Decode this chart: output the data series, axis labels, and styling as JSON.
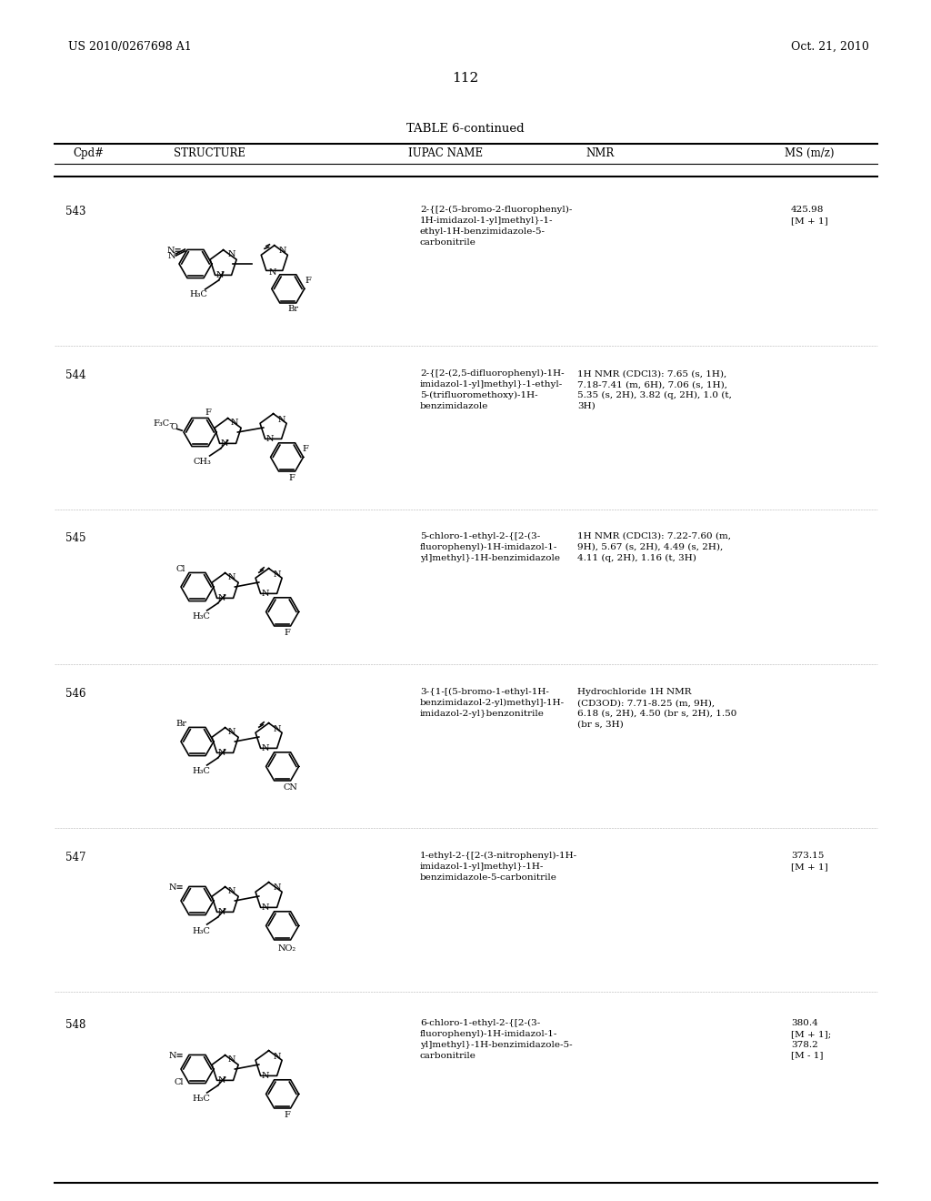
{
  "page_header_left": "US 2010/0267698 A1",
  "page_header_right": "Oct. 21, 2010",
  "page_number": "112",
  "table_title": "TABLE 6-continued",
  "columns": [
    "Cpd#",
    "STRUCTURE",
    "IUPAC NAME",
    "NMR",
    "MS (m/z)"
  ],
  "background_color": "#ffffff",
  "text_color": "#000000",
  "compounds": [
    {
      "id": "543",
      "iupac": "2-{[2-(5-bromo-2-fluorophenyl)-\n1H-imidazol-1-yl]methyl}-1-\nethyl-1H-benzimidazole-5-\ncarbonitrile",
      "nmr": "",
      "ms": "425.98\n[M + 1]"
    },
    {
      "id": "544",
      "iupac": "2-{[2-(2,5-difluorophenyl)-1H-\nimidazol-1-yl]methyl}-1-ethyl-\n5-(trifluoromethoxy)-1H-\nbenzimidazole",
      "nmr": "1H NMR (CDCl3): 7.65 (s, 1H),\n7.18-7.41 (m, 6H), 7.06 (s, 1H),\n5.35 (s, 2H), 3.82 (q, 2H), 1.0 (t,\n3H)",
      "ms": ""
    },
    {
      "id": "545",
      "iupac": "5-chloro-1-ethyl-2-{[2-(3-\nfluorophenyl)-1H-imidazol-1-\nyl]methyl}-1H-benzimidazole",
      "nmr": "1H NMR (CDCl3): 7.22-7.60 (m,\n9H), 5.67 (s, 2H), 4.49 (s, 2H),\n4.11 (q, 2H), 1.16 (t, 3H)",
      "ms": ""
    },
    {
      "id": "546",
      "iupac": "3-{1-[(5-bromo-1-ethyl-1H-\nbenzimidazol-2-yl)methyl]-1H-\nimidazol-2-yl}benzonitrile",
      "nmr": "Hydrochloride 1H NMR\n(CD3OD): 7.71-8.25 (m, 9H),\n6.18 (s, 2H), 4.50 (br s, 2H), 1.50\n(br s, 3H)",
      "ms": ""
    },
    {
      "id": "547",
      "iupac": "1-ethyl-2-{[2-(3-nitrophenyl)-1H-\nimidazol-1-yl]methyl}-1H-\nbenzimidazole-5-carbonitrile",
      "nmr": "",
      "ms": "373.15\n[M + 1]"
    },
    {
      "id": "548",
      "iupac": "6-chloro-1-ethyl-2-{[2-(3-\nfluorophenyl)-1H-imidazol-1-\nyl]methyl}-1H-benzimidazole-5-\ncarbonitrile",
      "nmr": "",
      "ms": "380.4\n[M + 1];\n378.2\n[M - 1]"
    }
  ]
}
